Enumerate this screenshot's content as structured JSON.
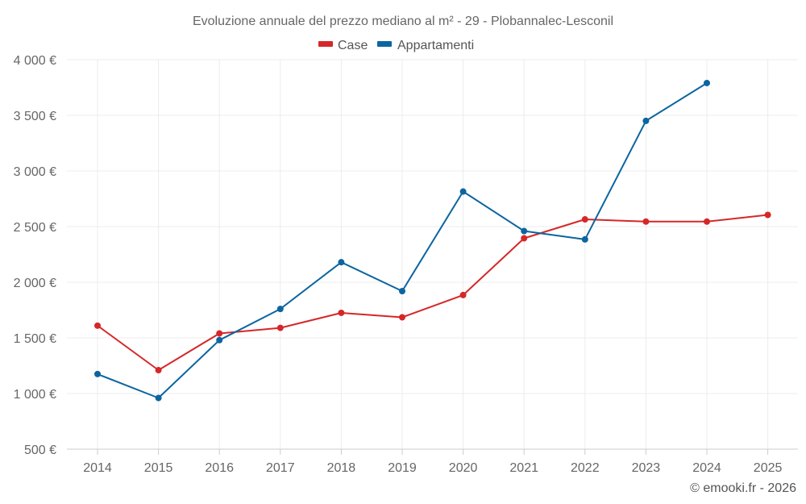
{
  "chart_data": {
    "type": "line",
    "title": "Evoluzione annuale del prezzo mediano al m² - 29 - Plobannalec-Lesconil",
    "x": [
      2014,
      2015,
      2016,
      2017,
      2018,
      2019,
      2020,
      2021,
      2022,
      2023,
      2024,
      2025
    ],
    "x_tick_labels": [
      "2014",
      "2015",
      "2016",
      "2017",
      "2018",
      "2019",
      "2020",
      "2021",
      "2022",
      "2023",
      "2024",
      "2025"
    ],
    "y_ticks": [
      500,
      1000,
      1500,
      2000,
      2500,
      3000,
      3500,
      4000
    ],
    "y_tick_labels": [
      "500 €",
      "1 000 €",
      "1 500 €",
      "2 000 €",
      "2 500 €",
      "3 000 €",
      "3 500 €",
      "4 000 €"
    ],
    "ylim": [
      500,
      4000
    ],
    "grid": true,
    "legend_position": "top-center",
    "series": [
      {
        "name": "Case",
        "color": "#d62728",
        "values": [
          1610,
          1210,
          1540,
          1590,
          1725,
          1685,
          1885,
          2395,
          2565,
          2545,
          2545,
          2605
        ]
      },
      {
        "name": "Appartamenti",
        "color": "#0c659f",
        "values": [
          1175,
          960,
          1480,
          1760,
          2180,
          1920,
          2815,
          2460,
          2385,
          3450,
          3790,
          null
        ]
      }
    ]
  },
  "credit": "© emooki.fr - 2026"
}
